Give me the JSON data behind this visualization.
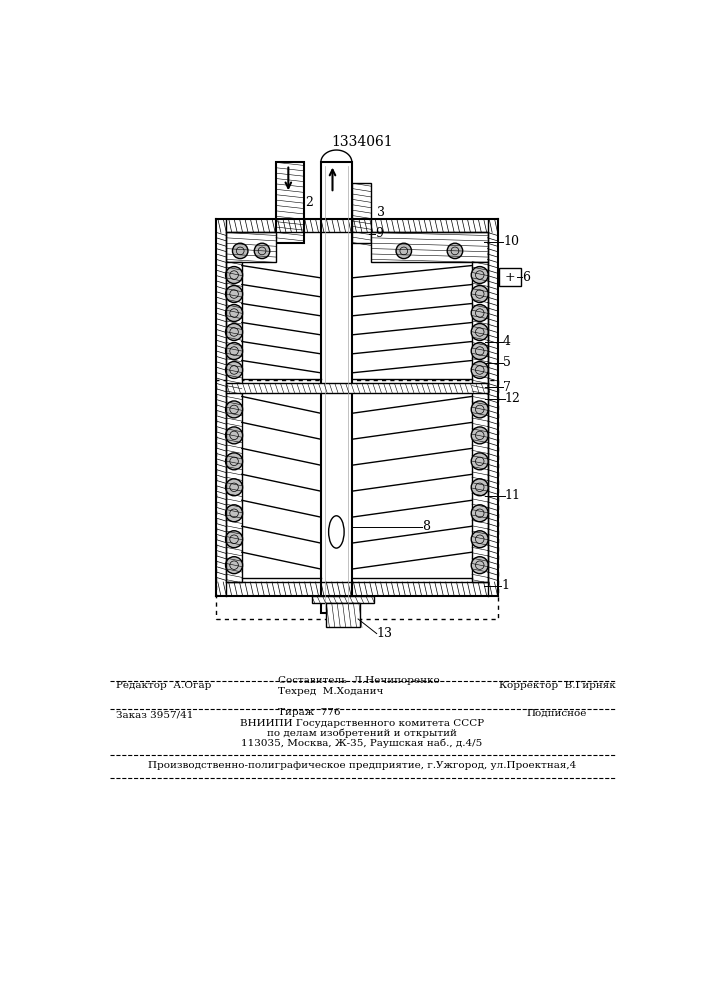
{
  "patent_number": "1334061",
  "background_color": "#ffffff",
  "line_color": "#000000",
  "footer_editor": "Редактор  А.Огар",
  "footer_composer1": "Составитель  Л.Нечипоренко",
  "footer_composer2": "Техред  М.Ходанич",
  "footer_corrector": "Корректор  В.Гирняк",
  "footer_order": "Заказ 3957/41",
  "footer_tirazh": "Тираж  776",
  "footer_podpisnoe": "Подписное",
  "footer_vniipi": "ВНИИПИ Государственного комитета СССР",
  "footer_dela": "по делам изобретений и открытий",
  "footer_addr": "113035, Москва, Ж-35, Раушская наб., д.4/5",
  "footer_prod": "Производственно-полиграфическое предприятие, г.Ужгород, ул.Проектная,4"
}
